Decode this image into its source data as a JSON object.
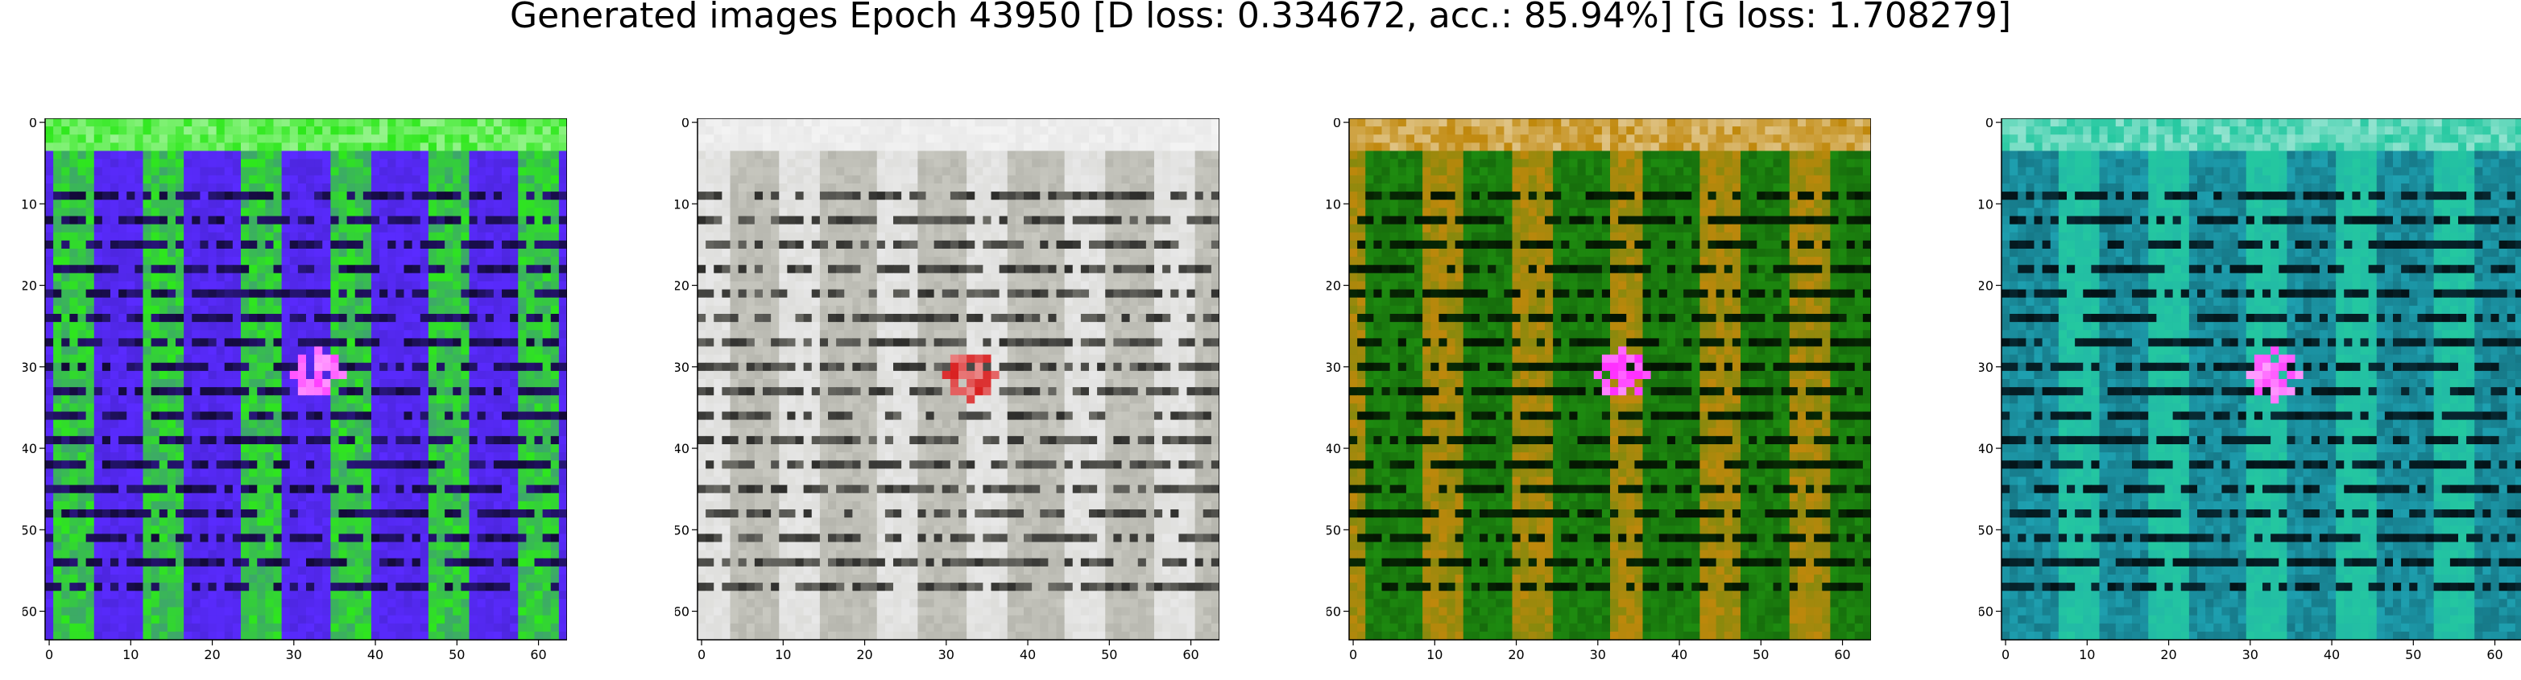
{
  "figure": {
    "title": "Generated images Epoch 43950 [D loss: 0.334672, acc.: 85.94%] [G loss: 1.708279]"
  },
  "axes": {
    "xticks": [
      "0",
      "10",
      "20",
      "30",
      "40",
      "50",
      "60"
    ],
    "yticks": [
      "0",
      "10",
      "20",
      "30",
      "40",
      "50",
      "60"
    ],
    "xtick_values": [
      0,
      10,
      20,
      30,
      40,
      50,
      60
    ],
    "ytick_values": [
      0,
      10,
      20,
      30,
      40,
      50,
      60
    ],
    "xlim": [
      -0.5,
      63.5
    ],
    "ylim": [
      63.5,
      -0.5
    ]
  },
  "images": [
    {
      "name": "generated-image-1",
      "dominant_colors": [
        "#5a2bff",
        "#2ee81c",
        "#3a1fb0"
      ],
      "accent": "#ff40ff"
    },
    {
      "name": "generated-image-2",
      "dominant_colors": [
        "#c8c8c0",
        "#e8e8e8",
        "#9a9a92"
      ],
      "accent": "#d81c1c"
    },
    {
      "name": "generated-image-3",
      "dominant_colors": [
        "#1e8c10",
        "#c0880c",
        "#0a3c06"
      ],
      "accent": "#ff2aff"
    },
    {
      "name": "generated-image-4",
      "dominant_colors": [
        "#1ea0b0",
        "#24c8a0",
        "#0a3c4a"
      ],
      "accent": "#ff40ff"
    }
  ]
}
